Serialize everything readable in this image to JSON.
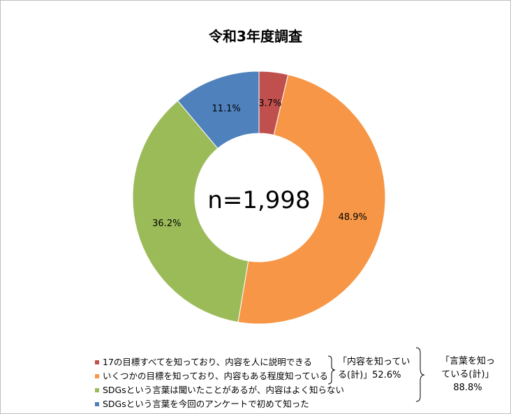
{
  "chart_data": {
    "type": "pie",
    "title": "令和3年度調査",
    "center_label": "n=1,998",
    "slices": [
      {
        "name": "17の目標すべてを知っており、内容を人に説明できる",
        "value": 3.7,
        "label": "3.7%",
        "color": "#c0504d"
      },
      {
        "name": "いくつかの目標を知っており、内容もある程度知っている",
        "value": 48.9,
        "label": "48.9%",
        "color": "#f79646"
      },
      {
        "name": "SDGsという言葉は聞いたことがあるが、内容はよく知らない",
        "value": 36.2,
        "label": "36.2%",
        "color": "#9bbb59"
      },
      {
        "name": "SDGsという言葉を今回のアンケートで初めて知った",
        "value": 11.1,
        "label": "11.1%",
        "color": "#4f81bd"
      }
    ],
    "legend_position": "bottom-left",
    "annotations": {
      "group1": {
        "line1": "「内容を知ってい",
        "line2": "る(計)」52.6%"
      },
      "group2": {
        "line1": "「言葉を知っ",
        "line2": "ている(計)」",
        "line3": "88.8%"
      }
    }
  }
}
